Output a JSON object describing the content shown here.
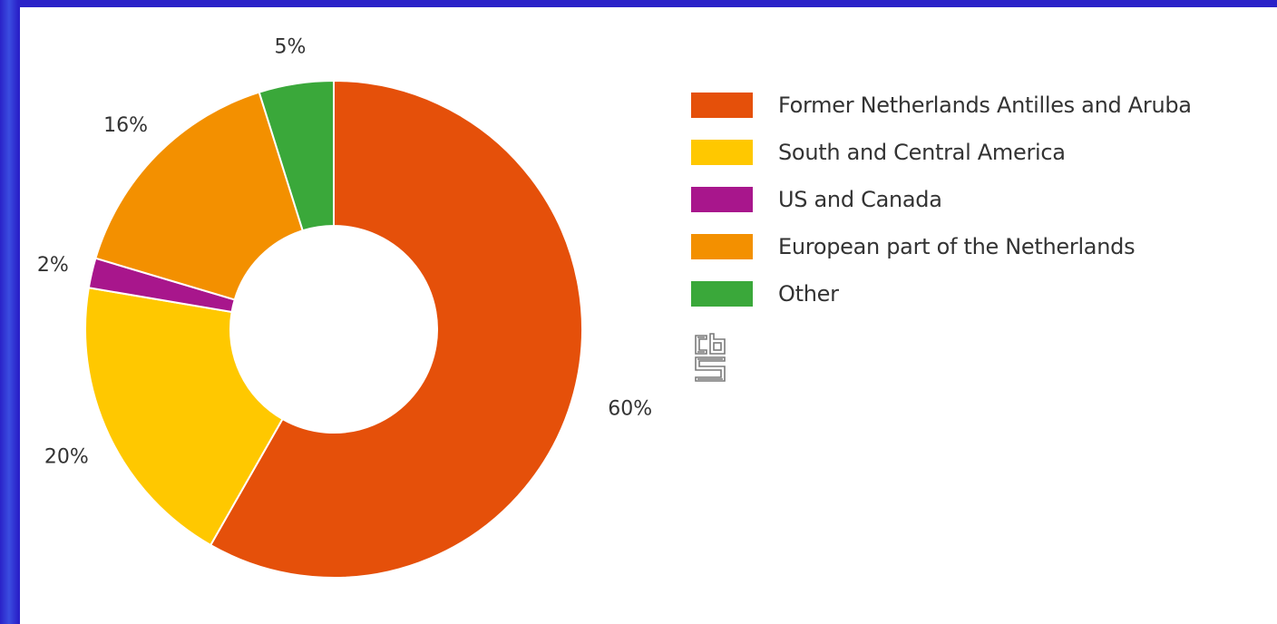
{
  "chart_data": {
    "type": "pie",
    "variant": "donut",
    "categories": [
      "Former Netherlands Antilles and Aruba",
      "South and Central America",
      "US and Canada",
      "European part of the Netherlands",
      "Other"
    ],
    "values": [
      60,
      20,
      2,
      16,
      5
    ],
    "labels": [
      "60%",
      "20%",
      "2%",
      "16%",
      "5%"
    ],
    "colors": [
      "#e5500a",
      "#ffc800",
      "#a8168c",
      "#f39000",
      "#3aa83a"
    ],
    "legend_position": "right",
    "grid": false
  },
  "logo": {
    "icon": "cbs-logo-icon"
  }
}
